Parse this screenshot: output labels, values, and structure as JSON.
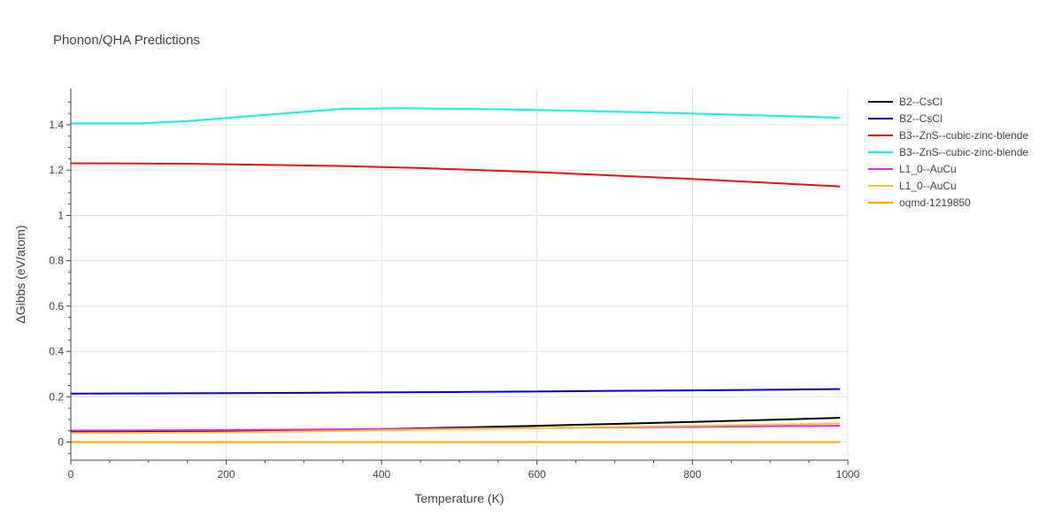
{
  "chart_data": {
    "type": "line",
    "title": "Phonon/QHA Predictions",
    "xlabel": "Temperature (K)",
    "ylabel": "ΔGibbs (eV/atom)",
    "xlim": [
      0,
      1000
    ],
    "ylim": [
      -0.08,
      1.56
    ],
    "xticks": [
      0,
      200,
      400,
      600,
      800,
      1000
    ],
    "xtick_labels": [
      "0",
      "200",
      "400",
      "600",
      "800",
      "1000"
    ],
    "yticks": [
      0,
      0.2,
      0.4,
      0.6,
      0.8,
      1.0,
      1.2,
      1.4
    ],
    "ytick_labels": [
      "0",
      "0.2",
      "0.4",
      "0.6",
      "0.8",
      "1",
      "1.2",
      "1.4"
    ],
    "grid": true,
    "legend_position": "right",
    "series": [
      {
        "name": "B2--CsCl",
        "color": "#000000",
        "x": [
          0,
          100,
          200,
          300,
          400,
          500,
          600,
          700,
          800,
          900,
          990
        ],
        "y": [
          0.044,
          0.045,
          0.047,
          0.051,
          0.057,
          0.064,
          0.072,
          0.08,
          0.089,
          0.098,
          0.107
        ]
      },
      {
        "name": "B2--CsCl",
        "color": "#0000dd",
        "x": [
          0,
          100,
          200,
          300,
          400,
          500,
          600,
          700,
          800,
          900,
          990
        ],
        "y": [
          0.214,
          0.215,
          0.216,
          0.217,
          0.219,
          0.221,
          0.223,
          0.226,
          0.228,
          0.231,
          0.234
        ]
      },
      {
        "name": "B3--ZnS--cubic-zinc-blende",
        "color": "#ee1111",
        "x": [
          0,
          150,
          350,
          450,
          600,
          800,
          990
        ],
        "y": [
          1.23,
          1.228,
          1.218,
          1.209,
          1.191,
          1.161,
          1.128
        ]
      },
      {
        "name": "B3--ZnS--cubic-zinc-blende",
        "color": "#11eeee",
        "x": [
          0,
          90,
          150,
          200,
          350,
          420,
          560,
          650,
          800,
          990
        ],
        "y": [
          1.406,
          1.406,
          1.416,
          1.43,
          1.47,
          1.473,
          1.468,
          1.462,
          1.45,
          1.431
        ]
      },
      {
        "name": "L1_0--AuCu",
        "color": "#ee22ee",
        "x": [
          0,
          100,
          200,
          300,
          400,
          500,
          600,
          700,
          800,
          900,
          990
        ],
        "y": [
          0.051,
          0.052,
          0.053,
          0.055,
          0.057,
          0.06,
          0.062,
          0.065,
          0.067,
          0.07,
          0.072
        ]
      },
      {
        "name": "L1_0--AuCu",
        "color": "#f5c431",
        "x": [
          0,
          100,
          200,
          300,
          400,
          500,
          600,
          700,
          800,
          900,
          990
        ],
        "y": [
          0.04,
          0.041,
          0.043,
          0.047,
          0.052,
          0.057,
          0.062,
          0.067,
          0.072,
          0.077,
          0.082
        ]
      },
      {
        "name": "oqmd-1219850",
        "color": "#ffa500",
        "x": [
          0,
          990
        ],
        "y": [
          0.0,
          0.0
        ]
      }
    ]
  }
}
